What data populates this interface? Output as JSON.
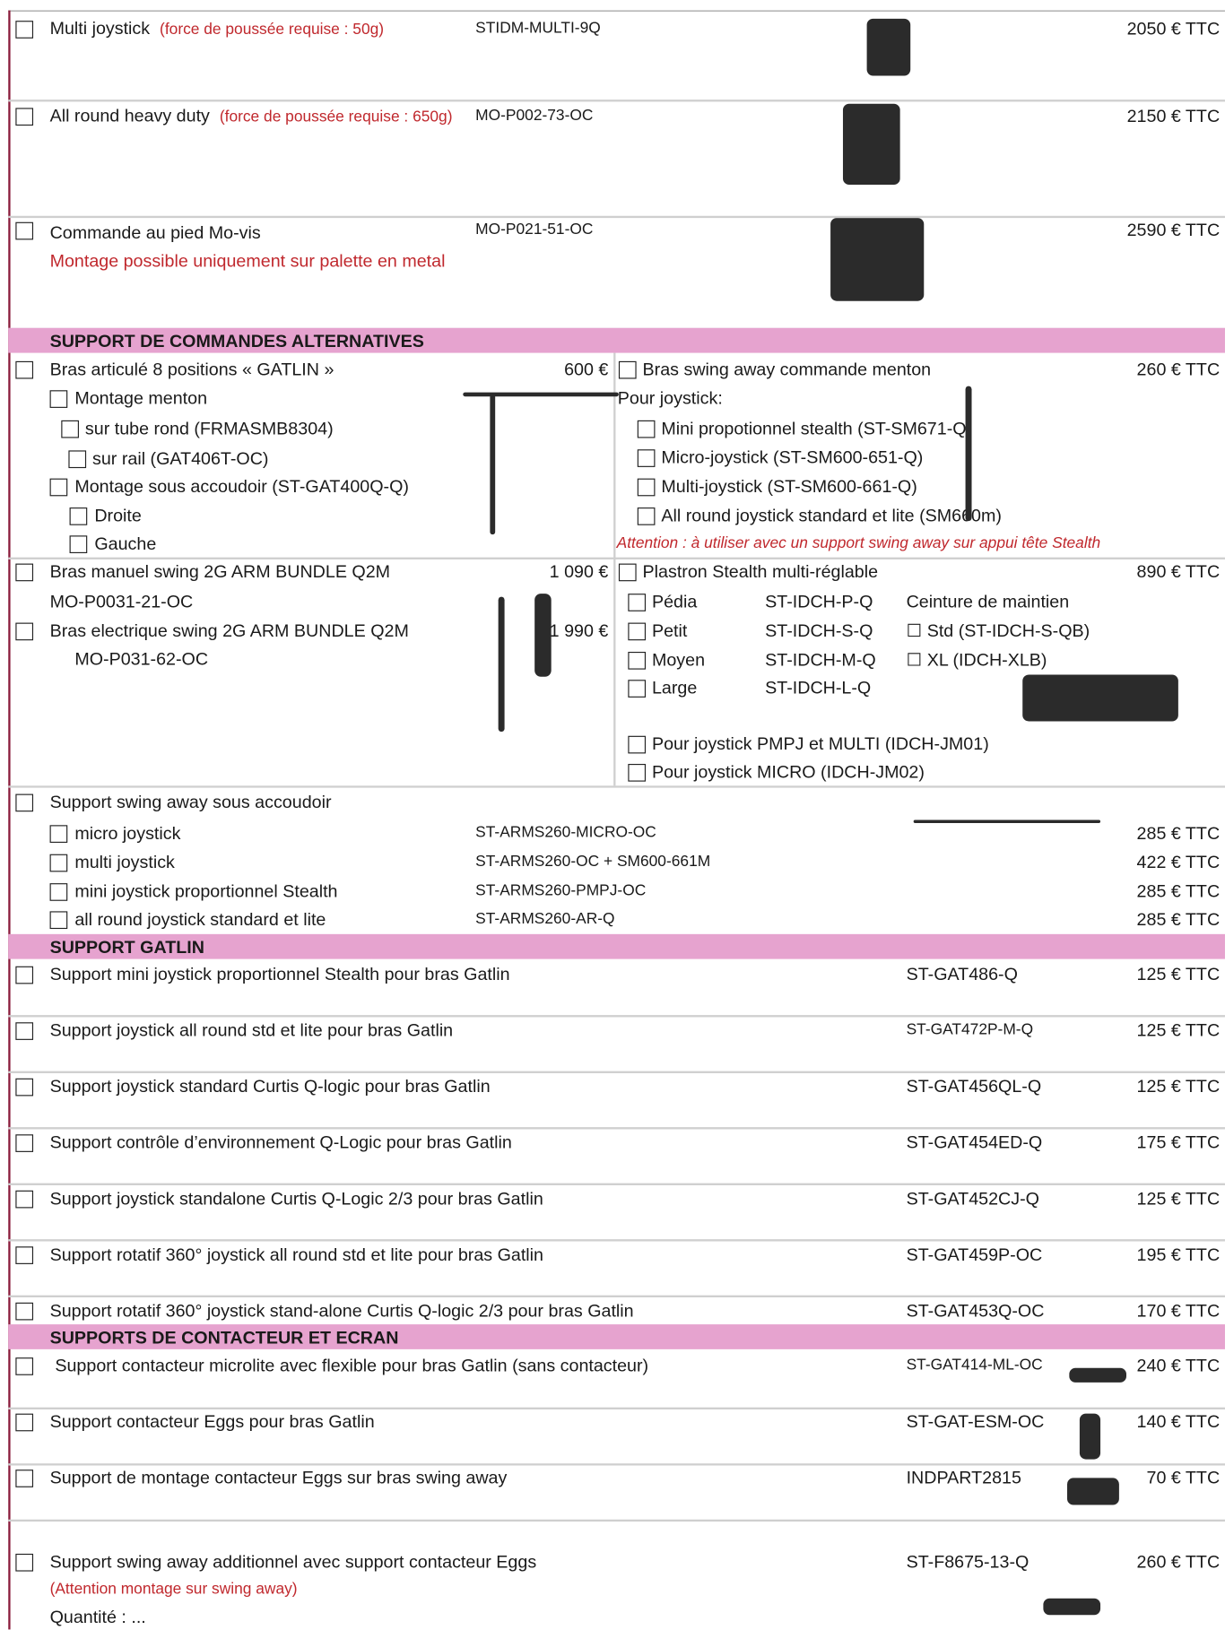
{
  "top_items": [
    {
      "name": "Multi joystick",
      "note": "(force de poussée requise : 50g)",
      "ref": "STIDM-MULTI-9Q",
      "price": "2050 € TTC"
    },
    {
      "name": "All round heavy duty",
      "note": "(force de poussée requise : 650g)",
      "ref": "MO-P002-73-OC",
      "price": "2150 € TTC"
    },
    {
      "name": "Commande au pied Mo-vis",
      "note": "Montage possible uniquement sur palette en metal",
      "ref": "MO-P021-51-OC",
      "price": "2590 € TTC"
    }
  ],
  "section_alternatives": {
    "title": "SUPPORT DE COMMANDES ALTERNATIVES",
    "gatlin_arm": {
      "name": "Bras articulé 8 positions « GATLIN »",
      "price": "600 €",
      "options": [
        "Montage menton",
        "sur tube rond (FRMASMB8304)",
        "sur rail (GAT406T-OC)",
        "Montage sous accoudoir (ST-GAT400Q-Q)",
        "Droite",
        "Gauche"
      ]
    },
    "swing_chin": {
      "name": "Bras swing away commande menton",
      "price": "260 € TTC",
      "subtitle": "Pour joystick:",
      "options": [
        "Mini propotionnel stealth (ST-SM671-Q)",
        "Micro-joystick (ST-SM600-651-Q)",
        "Multi-joystick (ST-SM600-661-Q)",
        "All round joystick standard et lite (SM660m)"
      ],
      "warning": "Attention : à utiliser avec un support swing away sur appui tête Stealth"
    },
    "swing_arms": [
      {
        "name": "Bras manuel swing 2G ARM BUNDLE Q2M",
        "ref": "MO-P0031-21-OC",
        "price": "1 090 €"
      },
      {
        "name": "Bras electrique swing 2G ARM BUNDLE Q2M",
        "ref": "MO-P031-62-OC",
        "price": "1 990 €"
      }
    ],
    "plastron": {
      "name": "Plastron Stealth multi-réglable",
      "price": "890 € TTC",
      "sizes": [
        {
          "label": "Pédia",
          "ref": "ST-IDCH-P-Q"
        },
        {
          "label": "Petit",
          "ref": "ST-IDCH-S-Q"
        },
        {
          "label": "Moyen",
          "ref": "ST-IDCH-M-Q"
        },
        {
          "label": "Large",
          "ref": "ST-IDCH-L-Q"
        }
      ],
      "belt_title": "Ceinture de maintien",
      "belts": [
        "☐ Std (ST-IDCH-S-QB)",
        "☐ XL (IDCH-XLB)"
      ],
      "options": [
        "Pour joystick PMPJ et MULTI (IDCH-JM01)",
        "Pour joystick MICRO  (IDCH-JM02)"
      ]
    },
    "armrest_swing": {
      "name": "Support swing away sous accoudoir",
      "options": [
        {
          "label": "micro joystick",
          "ref": "ST-ARMS260-MICRO-OC",
          "price": "285 € TTC"
        },
        {
          "label": "multi joystick",
          "ref": "ST-ARMS260-OC + SM600-661M",
          "price": "422 € TTC"
        },
        {
          "label": "mini joystick proportionnel Stealth",
          "ref": "ST-ARMS260-PMPJ-OC",
          "price": "285 € TTC"
        },
        {
          "label": "all round joystick standard et lite",
          "ref": "ST-ARMS260-AR-Q",
          "price": "285 € TTC"
        }
      ]
    }
  },
  "section_gatlin": {
    "title": "SUPPORT GATLIN",
    "items": [
      {
        "name": "Support mini joystick proportionnel Stealth pour bras Gatlin",
        "ref": "ST-GAT486-Q",
        "price": "125 € TTC"
      },
      {
        "name": "Support joystick all round std et lite pour bras Gatlin",
        "ref": "ST-GAT472P-M-Q",
        "price": "125 € TTC"
      },
      {
        "name": "Support joystick standard Curtis Q-logic pour bras Gatlin",
        "ref": "ST-GAT456QL-Q",
        "price": "125 € TTC"
      },
      {
        "name": "Support contrôle d’environnement Q-Logic pour bras Gatlin",
        "ref": "ST-GAT454ED-Q",
        "price": "175 € TTC"
      },
      {
        "name": "Support joystick standalone Curtis Q-Logic 2/3 pour bras Gatlin",
        "ref": "ST-GAT452CJ-Q",
        "price": "125 € TTC"
      },
      {
        "name": "Support rotatif 360° joystick all round std et lite pour bras Gatlin",
        "ref": "ST-GAT459P-OC",
        "price": "195 € TTC"
      },
      {
        "name": "Support rotatif 360° joystick stand-alone Curtis Q-logic 2/3 pour bras Gatlin",
        "ref": "ST-GAT453Q-OC",
        "price": "170 € TTC"
      }
    ]
  },
  "section_contact": {
    "title": "SUPPORTS DE CONTACTEUR ET ECRAN",
    "items": [
      {
        "name": "Support contacteur microlite avec flexible pour bras Gatlin (sans contacteur)",
        "ref": "ST-GAT414-ML-OC",
        "price": "240 € TTC"
      },
      {
        "name": "Support contacteur Eggs pour bras Gatlin",
        "ref": "ST-GAT-ESM-OC",
        "price": "140 € TTC"
      },
      {
        "name": "Support de montage contacteur Eggs sur bras swing away",
        "ref": "INDPART2815",
        "price": "70 € TTC"
      },
      {
        "name": "Support swing away additionnel avec support contacteur Eggs",
        "ref": "ST-F8675-13-Q",
        "price": "260 € TTC"
      }
    ],
    "note": "(Attention montage sur swing away)",
    "quantity": "Quantité : ..."
  }
}
